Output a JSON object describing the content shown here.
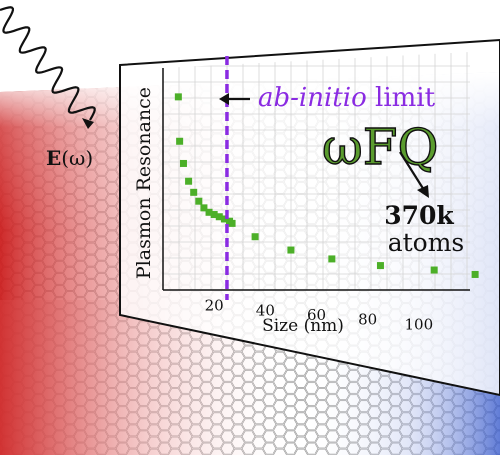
{
  "chart_data": {
    "type": "scatter",
    "title": "",
    "xlabel": "Size (nm)",
    "ylabel": "Plasmon Resonance",
    "x_ticks": [
      20,
      40,
      60,
      80,
      100
    ],
    "xlim": [
      0,
      120
    ],
    "ylim": [
      0,
      1
    ],
    "grid": true,
    "series": [
      {
        "color": "#4caf28",
        "points": [
          {
            "x": 6,
            "y": 0.87
          },
          {
            "x": 6.5,
            "y": 0.67
          },
          {
            "x": 8,
            "y": 0.57
          },
          {
            "x": 10,
            "y": 0.49
          },
          {
            "x": 12,
            "y": 0.44
          },
          {
            "x": 14,
            "y": 0.4
          },
          {
            "x": 16,
            "y": 0.37
          },
          {
            "x": 18,
            "y": 0.35
          },
          {
            "x": 20,
            "y": 0.34
          },
          {
            "x": 22,
            "y": 0.33
          },
          {
            "x": 24,
            "y": 0.32
          },
          {
            "x": 26,
            "y": 0.31
          },
          {
            "x": 27,
            "y": 0.3
          },
          {
            "x": 36,
            "y": 0.24
          },
          {
            "x": 50,
            "y": 0.18
          },
          {
            "x": 66,
            "y": 0.14
          },
          {
            "x": 85,
            "y": 0.11
          },
          {
            "x": 106,
            "y": 0.09
          },
          {
            "x": 122,
            "y": 0.07
          }
        ]
      }
    ],
    "limit": {
      "x": 25,
      "color": "#8a2be2"
    }
  },
  "annotations": {
    "limit_label_italic": "ab-initio",
    "limit_label_rest": " limit",
    "method": "ωFQ",
    "atoms_count": "370k",
    "atoms_word": "atoms",
    "field_bold": "E",
    "field_rest": "(ω)"
  },
  "colors": {
    "limit": "#8a2be2",
    "method_fill": "#5a9c2e",
    "points": "#4caf28",
    "sheet_red": "#cc1f1f",
    "sheet_blue": "#3a5ccc"
  }
}
